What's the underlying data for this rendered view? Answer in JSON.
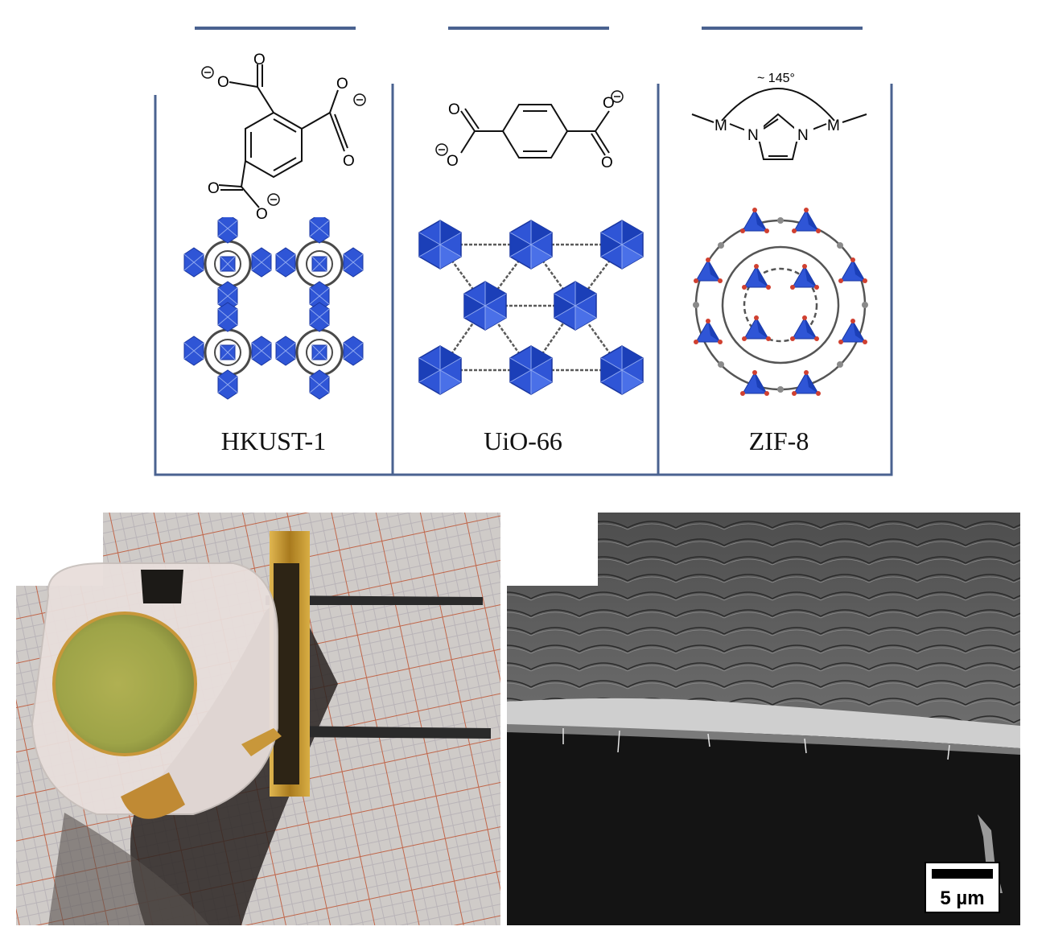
{
  "panels": [
    {
      "label": "HKUST-1"
    },
    {
      "label": "UiO-66"
    },
    {
      "label": "ZIF-8"
    }
  ],
  "zif_angle_label": "~ 145°",
  "zif_atoms": {
    "metal": "M",
    "nitrogen": "N"
  },
  "carboxylate_atom": "O",
  "sem_scale_label": "5 µm",
  "colors": {
    "frame": "#4a6290",
    "polyhedra": "#2f55d6",
    "linker": "#4a4a4a",
    "sem_bg": "#141414",
    "crystal_green": "#a3aa4c",
    "gold": "#c79a2e"
  }
}
